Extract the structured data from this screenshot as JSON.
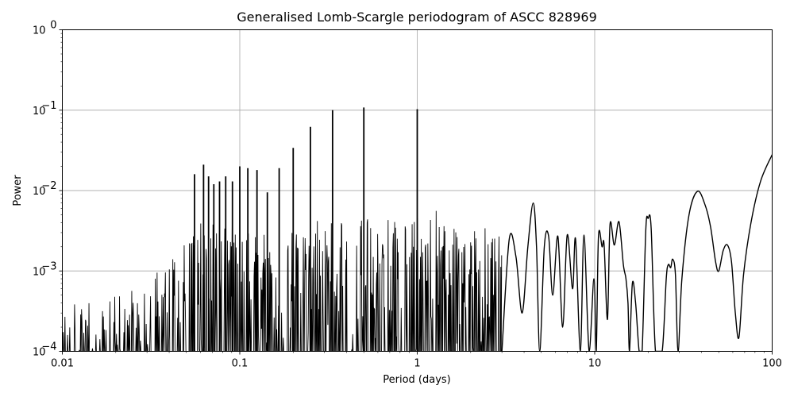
{
  "chart_data": {
    "type": "line",
    "title": "Generalised Lomb-Scargle periodogram of ASCC 828969",
    "xlabel": "Period (days)",
    "ylabel": "Power",
    "xscale": "log",
    "yscale": "log",
    "xlim": [
      0.01,
      100
    ],
    "ylim": [
      0.0001,
      1
    ],
    "grid": true,
    "legend": null,
    "line_color": "#000000",
    "grid_color": "#b0b0b0",
    "x_ticks": [
      {
        "value": 0.01,
        "label": "0.01"
      },
      {
        "value": 0.1,
        "label": "0.1"
      },
      {
        "value": 1,
        "label": "1"
      },
      {
        "value": 10,
        "label": "10"
      },
      {
        "value": 100,
        "label": "100"
      }
    ],
    "y_ticks": [
      {
        "value": 0.0001,
        "base": "10",
        "exp": "−4"
      },
      {
        "value": 0.001,
        "base": "10",
        "exp": "−3"
      },
      {
        "value": 0.01,
        "base": "10",
        "exp": "−2"
      },
      {
        "value": 0.1,
        "base": "10",
        "exp": "−1"
      },
      {
        "value": 1,
        "base": "10",
        "exp": "0"
      }
    ],
    "noise_envelope": {
      "description": "Dense unresolved forest of oscillations below period ~3 d; upper envelope (period, power)",
      "points": [
        [
          0.01,
          0.0005
        ],
        [
          0.012,
          0.0004
        ],
        [
          0.015,
          0.0005
        ],
        [
          0.02,
          0.0006
        ],
        [
          0.025,
          0.0007
        ],
        [
          0.03,
          0.0009
        ],
        [
          0.035,
          0.0011
        ],
        [
          0.04,
          0.0018
        ],
        [
          0.05,
          0.0035
        ],
        [
          0.06,
          0.004
        ],
        [
          0.08,
          0.0035
        ],
        [
          0.1,
          0.003
        ],
        [
          0.15,
          0.0025
        ],
        [
          0.2,
          0.003
        ],
        [
          0.3,
          0.004
        ],
        [
          0.4,
          0.0035
        ],
        [
          0.5,
          0.004
        ],
        [
          0.7,
          0.004
        ],
        [
          1.0,
          0.005
        ],
        [
          1.5,
          0.004
        ],
        [
          2.0,
          0.003
        ],
        [
          3.0,
          0.0025
        ]
      ]
    },
    "alias_peaks": [
      {
        "period": 0.0625,
        "power": 0.021
      },
      {
        "period": 0.0667,
        "power": 0.015
      },
      {
        "period": 0.0714,
        "power": 0.012
      },
      {
        "period": 0.0556,
        "power": 0.016
      },
      {
        "period": 0.0769,
        "power": 0.013
      },
      {
        "period": 0.0833,
        "power": 0.015
      },
      {
        "period": 0.0909,
        "power": 0.013
      },
      {
        "period": 0.1,
        "power": 0.02
      },
      {
        "period": 0.111,
        "power": 0.019
      },
      {
        "period": 0.125,
        "power": 0.018
      },
      {
        "period": 0.143,
        "power": 0.0095
      },
      {
        "period": 0.1667,
        "power": 0.019
      },
      {
        "period": 0.2,
        "power": 0.034
      },
      {
        "period": 0.25,
        "power": 0.062
      },
      {
        "period": 0.3333,
        "power": 0.1
      },
      {
        "period": 0.5,
        "power": 0.108
      },
      {
        "period": 1.0,
        "power": 0.103
      }
    ],
    "long_period_curve": {
      "description": "Resolved smooth curve at long periods (period, power)",
      "points": [
        [
          3.0,
          0.0001
        ],
        [
          3.3,
          0.0025
        ],
        [
          3.6,
          0.0015
        ],
        [
          3.9,
          0.0003
        ],
        [
          4.2,
          0.002
        ],
        [
          4.5,
          0.007
        ],
        [
          4.7,
          0.002
        ],
        [
          4.9,
          0.0001
        ],
        [
          5.2,
          0.002
        ],
        [
          5.5,
          0.0027
        ],
        [
          5.8,
          0.0005
        ],
        [
          6.2,
          0.0027
        ],
        [
          6.6,
          0.0002
        ],
        [
          7.0,
          0.0028
        ],
        [
          7.5,
          0.0006
        ],
        [
          7.8,
          0.0025
        ],
        [
          8.3,
          0.0001
        ],
        [
          8.7,
          0.0028
        ],
        [
          9.3,
          0.0001
        ],
        [
          9.9,
          0.0008
        ],
        [
          10.2,
          0.0001
        ],
        [
          10.5,
          0.0027
        ],
        [
          11.0,
          0.002
        ],
        [
          11.3,
          0.0021
        ],
        [
          11.8,
          0.00025
        ],
        [
          12.2,
          0.0038
        ],
        [
          12.9,
          0.0021
        ],
        [
          13.7,
          0.0041
        ],
        [
          14.5,
          0.0012
        ],
        [
          15.0,
          0.0008
        ],
        [
          15.4,
          0.0004
        ],
        [
          15.7,
          0.0001
        ],
        [
          16.3,
          0.0007
        ],
        [
          17.0,
          0.0004
        ],
        [
          17.8,
          0.0001
        ],
        [
          18.5,
          0.0001
        ],
        [
          19.4,
          0.0032
        ],
        [
          20.0,
          0.0045
        ],
        [
          20.8,
          0.0034
        ],
        [
          22.0,
          0.0001
        ],
        [
          24.0,
          0.0001
        ],
        [
          25.3,
          0.0008
        ],
        [
          26.0,
          0.0012
        ],
        [
          26.8,
          0.0011
        ],
        [
          27.5,
          0.0014
        ],
        [
          28.5,
          0.0009
        ],
        [
          29.5,
          0.0001
        ],
        [
          31.0,
          0.0008
        ],
        [
          34.0,
          0.005
        ],
        [
          38.0,
          0.0098
        ],
        [
          42.0,
          0.0065
        ],
        [
          45.0,
          0.0035
        ],
        [
          48.0,
          0.0013
        ],
        [
          50.0,
          0.001
        ],
        [
          53.0,
          0.0018
        ],
        [
          56.0,
          0.0021
        ],
        [
          59.0,
          0.0013
        ],
        [
          62.0,
          0.0003
        ],
        [
          65.0,
          0.00015
        ],
        [
          69.0,
          0.0009
        ],
        [
          76.0,
          0.004
        ],
        [
          86.0,
          0.013
        ],
        [
          100.0,
          0.028
        ]
      ]
    }
  }
}
